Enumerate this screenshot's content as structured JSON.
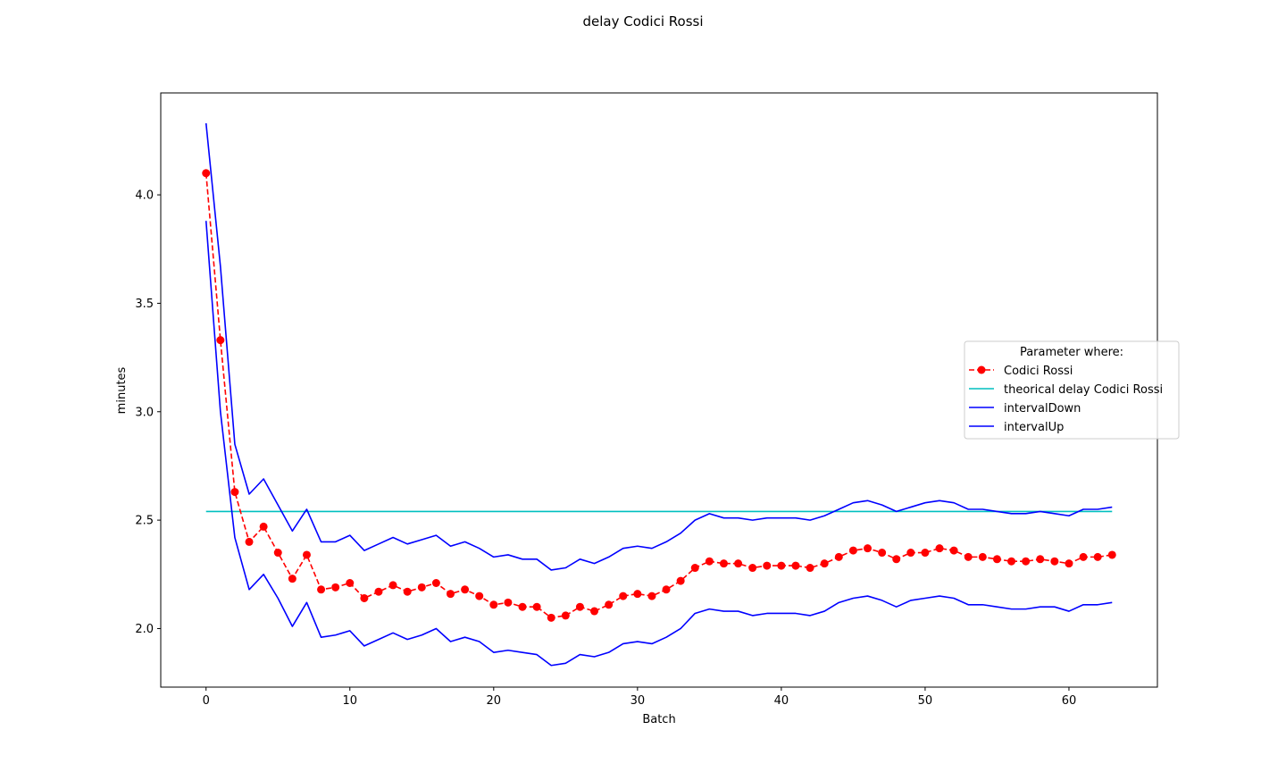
{
  "chart_data": {
    "type": "line",
    "title": "delay Codici Rossi",
    "xlabel": "Batch",
    "ylabel": "minutes",
    "xlim": [
      -3.15,
      66.15
    ],
    "ylim": [
      1.73,
      4.47
    ],
    "xticks": [
      0,
      10,
      20,
      30,
      40,
      50,
      60
    ],
    "yticks": [
      2.0,
      2.5,
      3.0,
      3.5,
      4.0
    ],
    "grid": false,
    "legend": {
      "title": "Parameter where:",
      "placement": "right"
    },
    "x": [
      0,
      1,
      2,
      3,
      4,
      5,
      6,
      7,
      8,
      9,
      10,
      11,
      12,
      13,
      14,
      15,
      16,
      17,
      18,
      19,
      20,
      21,
      22,
      23,
      24,
      25,
      26,
      27,
      28,
      29,
      30,
      31,
      32,
      33,
      34,
      35,
      36,
      37,
      38,
      39,
      40,
      41,
      42,
      43,
      44,
      45,
      46,
      47,
      48,
      49,
      50,
      51,
      52,
      53,
      54,
      55,
      56,
      57,
      58,
      59,
      60,
      61,
      62,
      63
    ],
    "series": [
      {
        "name": "Codici Rossi",
        "color": "#ff0000",
        "style": "dashed-marker",
        "values": [
          4.1,
          3.33,
          2.63,
          2.4,
          2.47,
          2.35,
          2.23,
          2.34,
          2.18,
          2.19,
          2.21,
          2.14,
          2.17,
          2.2,
          2.17,
          2.19,
          2.21,
          2.16,
          2.18,
          2.15,
          2.11,
          2.12,
          2.1,
          2.1,
          2.05,
          2.06,
          2.1,
          2.08,
          2.11,
          2.15,
          2.16,
          2.15,
          2.18,
          2.22,
          2.28,
          2.31,
          2.3,
          2.3,
          2.28,
          2.29,
          2.29,
          2.29,
          2.28,
          2.3,
          2.33,
          2.36,
          2.37,
          2.35,
          2.32,
          2.35,
          2.35,
          2.37,
          2.36,
          2.33,
          2.33,
          2.32,
          2.31,
          2.31,
          2.32,
          2.31,
          2.3,
          2.33,
          2.33,
          2.34
        ]
      },
      {
        "name": "theorical delay Codici Rossi",
        "color": "#00bfbf",
        "style": "solid",
        "values": [
          2.54,
          2.54,
          2.54,
          2.54,
          2.54,
          2.54,
          2.54,
          2.54,
          2.54,
          2.54,
          2.54,
          2.54,
          2.54,
          2.54,
          2.54,
          2.54,
          2.54,
          2.54,
          2.54,
          2.54,
          2.54,
          2.54,
          2.54,
          2.54,
          2.54,
          2.54,
          2.54,
          2.54,
          2.54,
          2.54,
          2.54,
          2.54,
          2.54,
          2.54,
          2.54,
          2.54,
          2.54,
          2.54,
          2.54,
          2.54,
          2.54,
          2.54,
          2.54,
          2.54,
          2.54,
          2.54,
          2.54,
          2.54,
          2.54,
          2.54,
          2.54,
          2.54,
          2.54,
          2.54,
          2.54,
          2.54,
          2.54,
          2.54,
          2.54,
          2.54,
          2.54,
          2.54,
          2.54,
          2.54
        ]
      },
      {
        "name": "intervalDown",
        "color": "#0000ff",
        "style": "solid",
        "values": [
          3.88,
          3.0,
          2.42,
          2.18,
          2.25,
          2.14,
          2.01,
          2.12,
          1.96,
          1.97,
          1.99,
          1.92,
          1.95,
          1.98,
          1.95,
          1.97,
          2.0,
          1.94,
          1.96,
          1.94,
          1.89,
          1.9,
          1.89,
          1.88,
          1.83,
          1.84,
          1.88,
          1.87,
          1.89,
          1.93,
          1.94,
          1.93,
          1.96,
          2.0,
          2.07,
          2.09,
          2.08,
          2.08,
          2.06,
          2.07,
          2.07,
          2.07,
          2.06,
          2.08,
          2.12,
          2.14,
          2.15,
          2.13,
          2.1,
          2.13,
          2.14,
          2.15,
          2.14,
          2.11,
          2.11,
          2.1,
          2.09,
          2.09,
          2.1,
          2.1,
          2.08,
          2.11,
          2.11,
          2.12
        ]
      },
      {
        "name": "intervalUp",
        "color": "#0000ff",
        "style": "solid",
        "values": [
          4.33,
          3.67,
          2.85,
          2.62,
          2.69,
          2.57,
          2.45,
          2.55,
          2.4,
          2.4,
          2.43,
          2.36,
          2.39,
          2.42,
          2.39,
          2.41,
          2.43,
          2.38,
          2.4,
          2.37,
          2.33,
          2.34,
          2.32,
          2.32,
          2.27,
          2.28,
          2.32,
          2.3,
          2.33,
          2.37,
          2.38,
          2.37,
          2.4,
          2.44,
          2.5,
          2.53,
          2.51,
          2.51,
          2.5,
          2.51,
          2.51,
          2.51,
          2.5,
          2.52,
          2.55,
          2.58,
          2.59,
          2.57,
          2.54,
          2.56,
          2.58,
          2.59,
          2.58,
          2.55,
          2.55,
          2.54,
          2.53,
          2.53,
          2.54,
          2.53,
          2.52,
          2.55,
          2.55,
          2.56
        ]
      }
    ]
  }
}
